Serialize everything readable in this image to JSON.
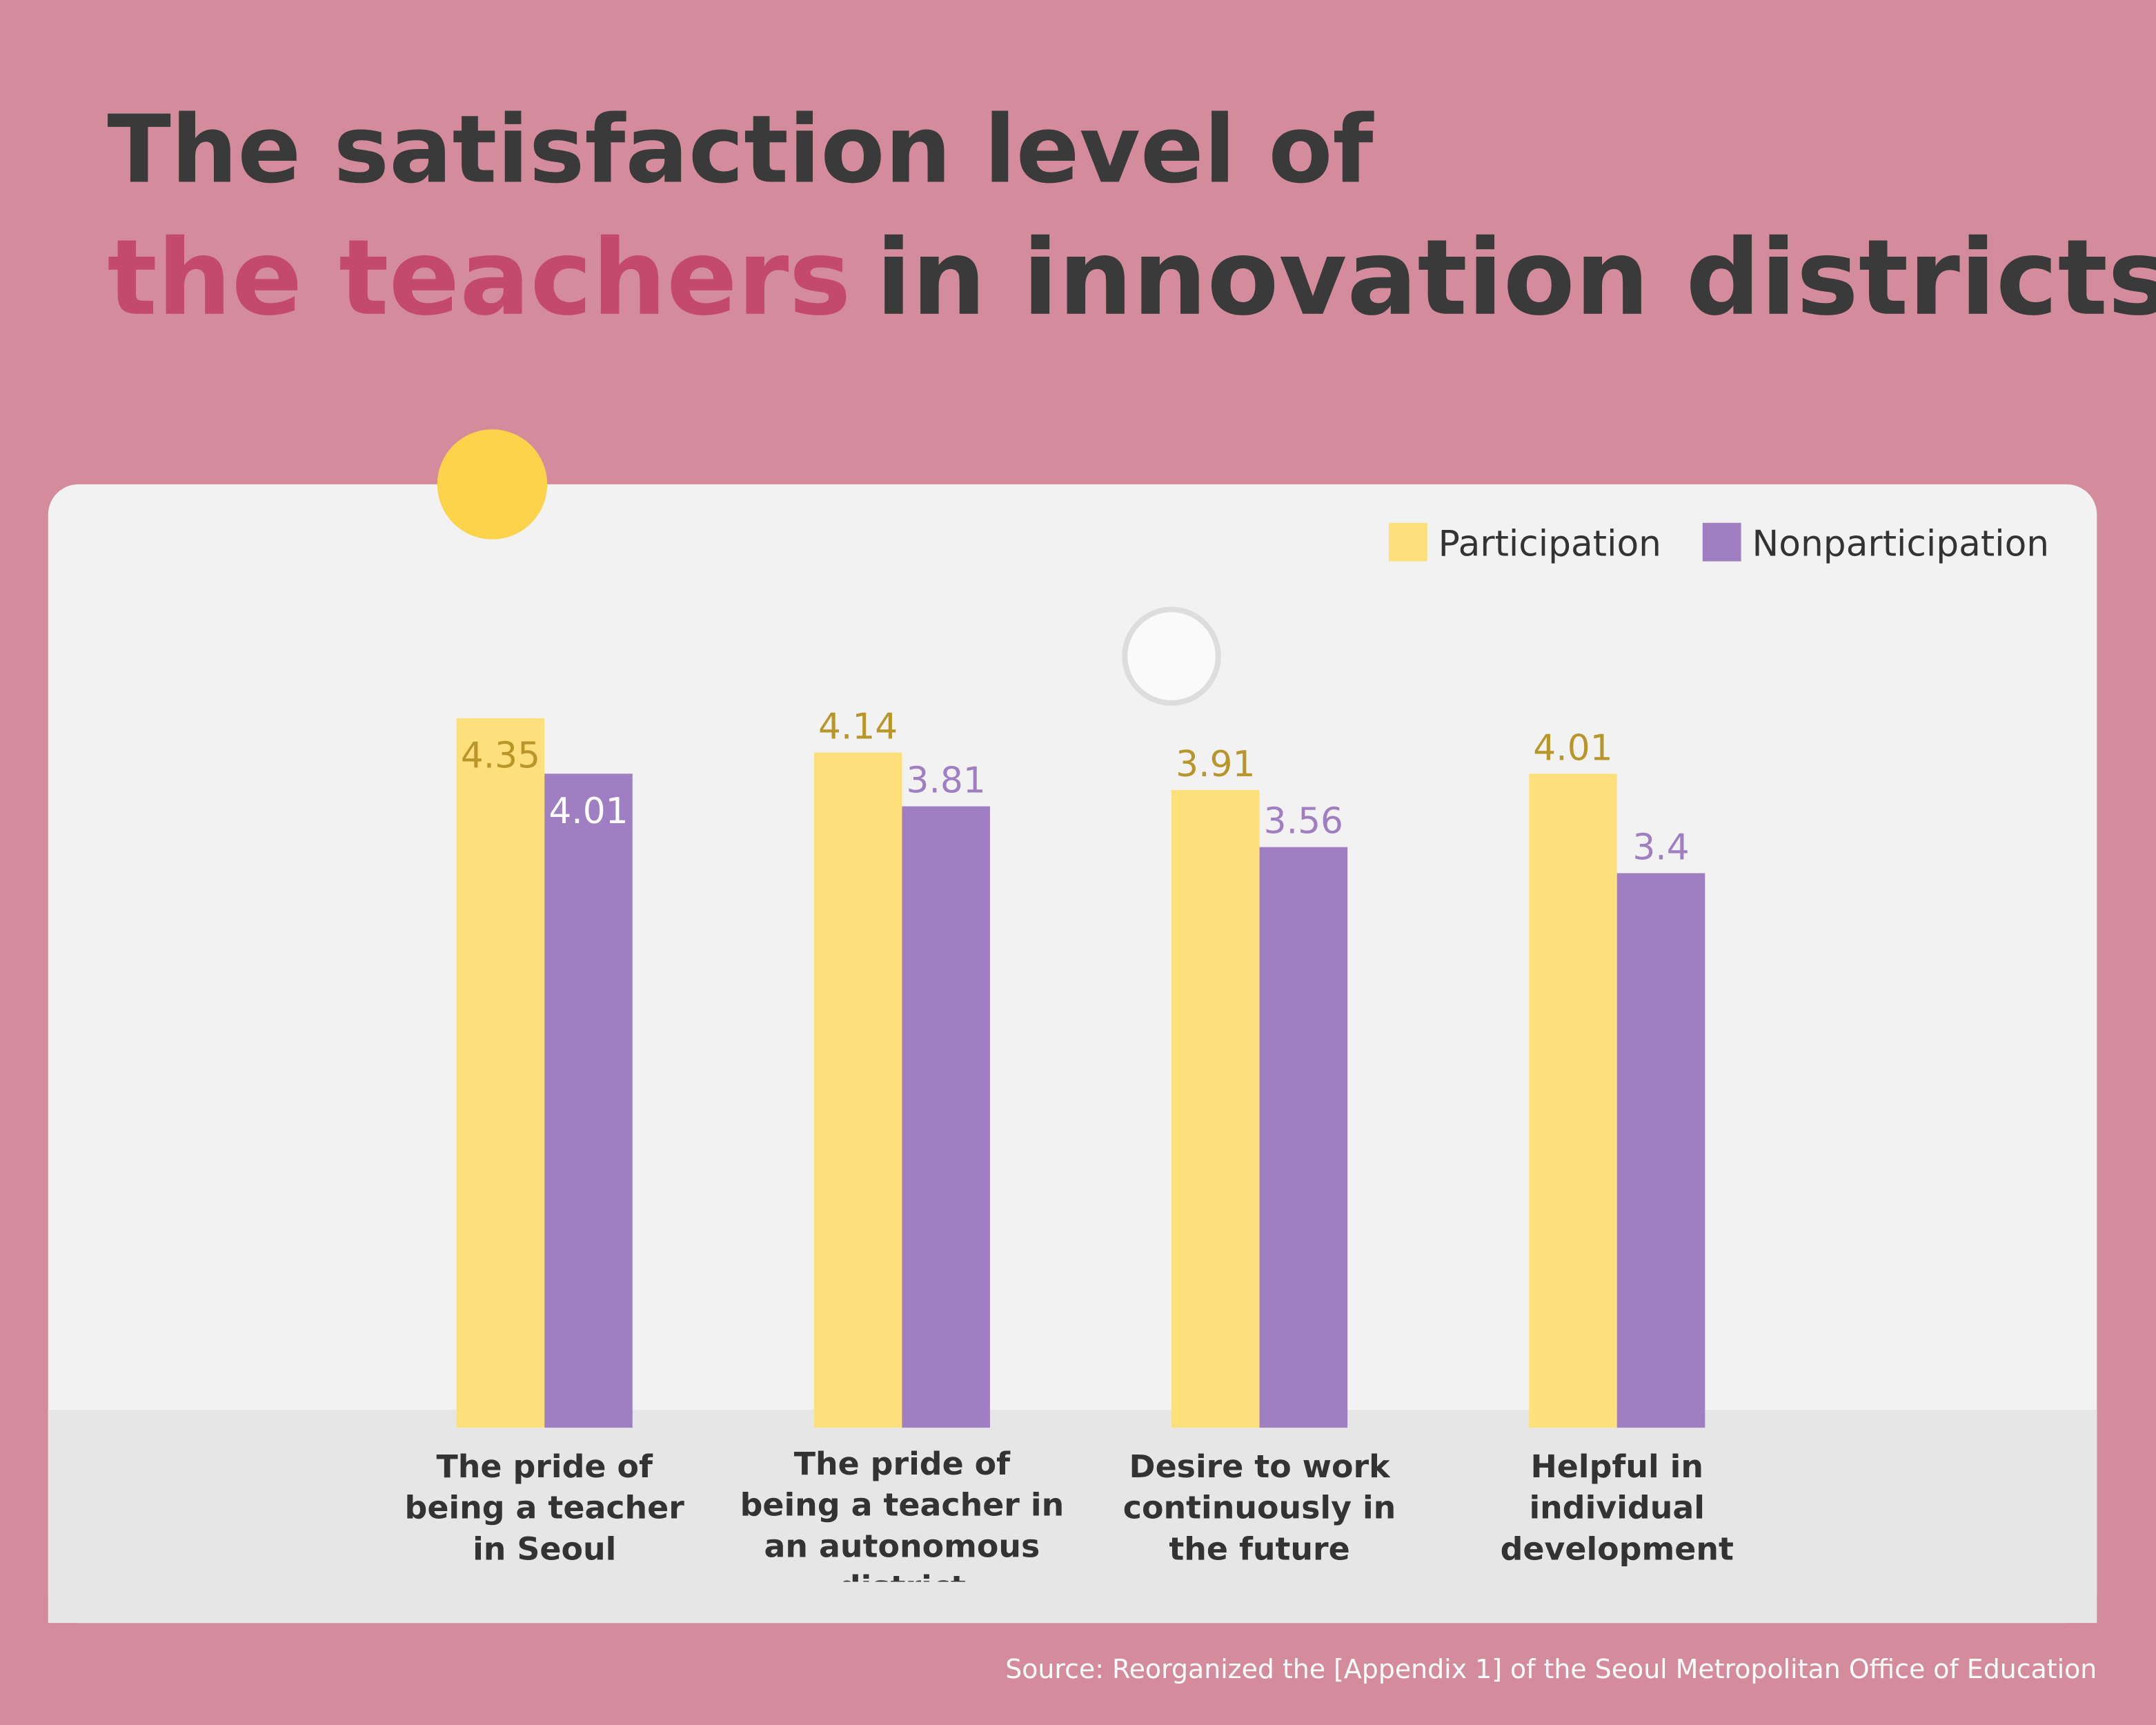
{
  "chart_data": {
    "type": "bar",
    "title": {
      "line1": "The satisfaction level of",
      "highlight": "the teachers",
      "rest": "in innovation districts"
    },
    "categories": [
      "The pride of being a teacher in Seoul",
      "The pride of being a teacher in an autonomous district",
      "Desire to work continuously in the future",
      "Helpful in individual development"
    ],
    "series": [
      {
        "name": "Participation",
        "color": "#fde07c",
        "values": [
          4.35,
          4.14,
          3.91,
          4.01
        ]
      },
      {
        "name": "Nonparticipation",
        "color": "#9f7fc2",
        "values": [
          4.01,
          3.81,
          3.56,
          3.4
        ]
      }
    ],
    "ylim": [
      0,
      5
    ],
    "legend": "top-right",
    "source": "Source: Reorganized the [Appendix 1] of the Seoul Metropolitan Office of Education"
  }
}
